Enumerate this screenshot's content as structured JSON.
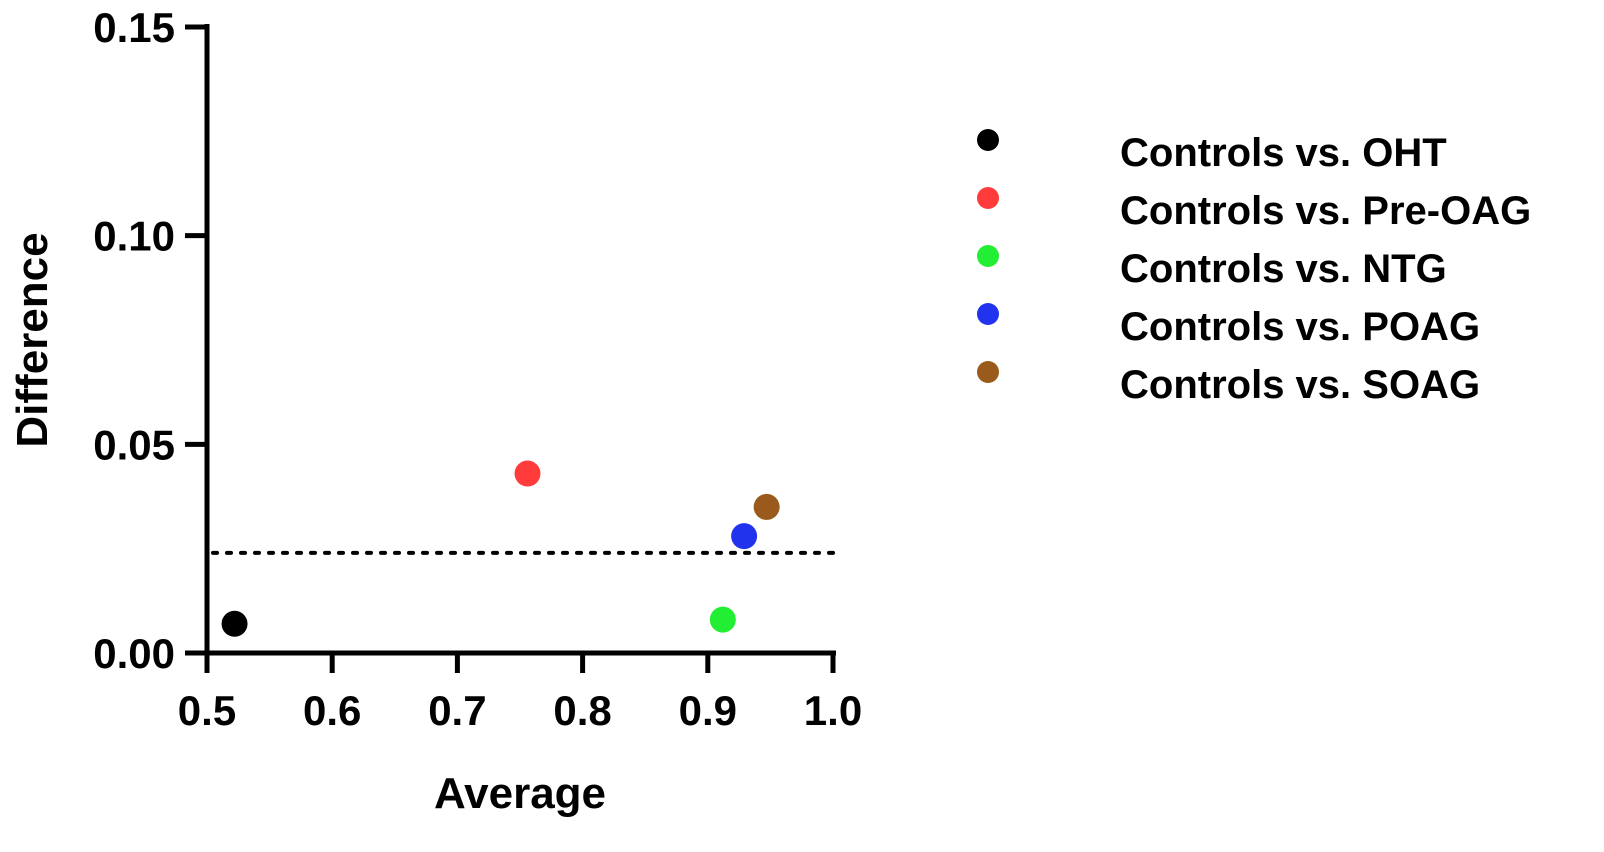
{
  "chart_data": {
    "type": "scatter",
    "xlabel": "Average",
    "ylabel": "Difference",
    "xlim": [
      0.5,
      1.0
    ],
    "ylim": [
      0.0,
      0.15
    ],
    "x_ticks": [
      "0.5",
      "0.6",
      "0.7",
      "0.8",
      "0.9",
      "1.0"
    ],
    "y_ticks": [
      "0.00",
      "0.05",
      "0.10",
      "0.15"
    ],
    "reference_line": {
      "y": 0.024,
      "style": "dotted"
    },
    "grid": false,
    "legend_position": "right",
    "series": [
      {
        "name": "Controls vs. OHT",
        "color": "#000000",
        "points": [
          {
            "x": 0.522,
            "y": 0.007
          }
        ]
      },
      {
        "name": "Controls vs. Pre-OAG",
        "color": "#ff3b3b",
        "points": [
          {
            "x": 0.756,
            "y": 0.043
          }
        ]
      },
      {
        "name": "Controls vs. NTG",
        "color": "#22ee33",
        "points": [
          {
            "x": 0.912,
            "y": 0.008
          }
        ]
      },
      {
        "name": "Controls vs. POAG",
        "color": "#2233ee",
        "points": [
          {
            "x": 0.929,
            "y": 0.028
          }
        ]
      },
      {
        "name": "Controls vs. SOAG",
        "color": "#9a5a1c",
        "points": [
          {
            "x": 0.947,
            "y": 0.035
          }
        ]
      }
    ]
  }
}
